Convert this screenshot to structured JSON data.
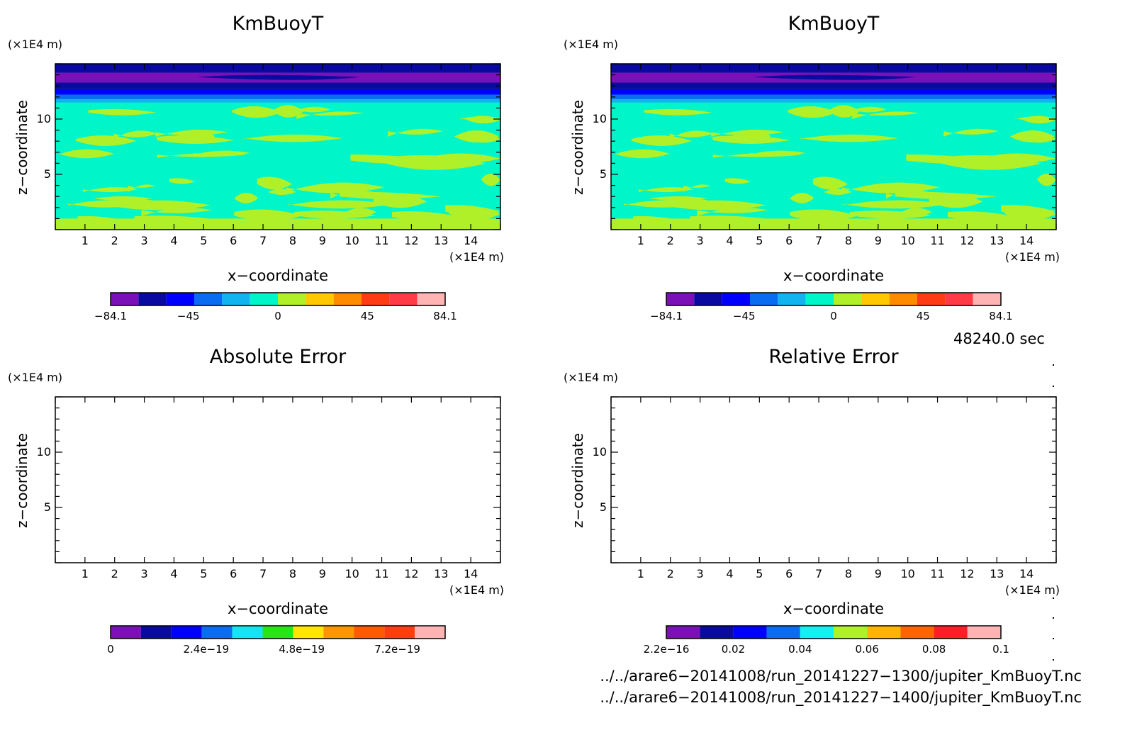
{
  "chart_data": [
    {
      "type": "heatmap",
      "title": "KmBuoyT",
      "xlabel": "x−coordinate",
      "ylabel": "z−coordinate",
      "x_unit": "(×1E4 m)",
      "y_unit": "(×1E4 m)",
      "x_ticks": [
        "1",
        "2",
        "3",
        "4",
        "5",
        "6",
        "7",
        "8",
        "9",
        "10",
        "11",
        "12",
        "13",
        "14"
      ],
      "y_ticks": [
        "5",
        "10"
      ],
      "xlim": [
        0,
        15
      ],
      "ylim": [
        0,
        15
      ],
      "colorbar": {
        "range": [
          -84.1,
          84.1
        ],
        "tick_labels": [
          "−84.1",
          "−45",
          "0",
          "45",
          "84.1"
        ],
        "colors": [
          "#7a10b8",
          "#0a0aa0",
          "#0000ff",
          "#0a6cf0",
          "#12b4f0",
          "#00f5c8",
          "#b0f028",
          "#ffc800",
          "#ff8c00",
          "#ff3c14",
          "#ff3c46",
          "#ffb4b4"
        ]
      },
      "description_levels": {
        "top_band": "purple/blue negative values near z=13-15",
        "interior": "near-zero (cyan) with light-green positive streaks",
        "bottom": "light-green near z=0-3"
      }
    },
    {
      "type": "heatmap",
      "title": "KmBuoyT",
      "xlabel": "x−coordinate",
      "ylabel": "z−coordinate",
      "x_unit": "(×1E4 m)",
      "y_unit": "(×1E4 m)",
      "x_ticks": [
        "1",
        "2",
        "3",
        "4",
        "5",
        "6",
        "7",
        "8",
        "9",
        "10",
        "11",
        "12",
        "13",
        "14"
      ],
      "y_ticks": [
        "5",
        "10"
      ],
      "xlim": [
        0,
        15
      ],
      "ylim": [
        0,
        15
      ],
      "colorbar": {
        "range": [
          -84.1,
          84.1
        ],
        "tick_labels": [
          "−84.1",
          "−45",
          "0",
          "45",
          "84.1"
        ],
        "colors": [
          "#7a10b8",
          "#0a0aa0",
          "#0000ff",
          "#0a6cf0",
          "#12b4f0",
          "#00f5c8",
          "#b0f028",
          "#ffc800",
          "#ff8c00",
          "#ff3c14",
          "#ff3c46",
          "#ffb4b4"
        ]
      }
    },
    {
      "type": "heatmap",
      "title": "Absolute Error",
      "xlabel": "x−coordinate",
      "ylabel": "z−coordinate",
      "x_unit": "(×1E4 m)",
      "y_unit": "(×1E4 m)",
      "x_ticks": [
        "1",
        "2",
        "3",
        "4",
        "5",
        "6",
        "7",
        "8",
        "9",
        "10",
        "11",
        "12",
        "13",
        "14"
      ],
      "y_ticks": [
        "5",
        "10"
      ],
      "xlim": [
        0,
        15
      ],
      "ylim": [
        0,
        15
      ],
      "colorbar": {
        "range": [
          0,
          8.4e-19
        ],
        "tick_labels": [
          "0",
          "2.4e−19",
          "4.8e−19",
          "7.2e−19"
        ],
        "colors": [
          "#7a10b8",
          "#0a0aa0",
          "#0000ff",
          "#0a6cf0",
          "#12e6f0",
          "#28e614",
          "#ffe600",
          "#ff9600",
          "#ff5a00",
          "#ff3c14",
          "#ffb4b4"
        ]
      }
    },
    {
      "type": "heatmap",
      "title": "Relative Error",
      "xlabel": "x−coordinate",
      "ylabel": "z−coordinate",
      "x_unit": "(×1E4 m)",
      "y_unit": "(×1E4 m)",
      "x_ticks": [
        "1",
        "2",
        "3",
        "4",
        "5",
        "6",
        "7",
        "8",
        "9",
        "10",
        "11",
        "12",
        "13",
        "14"
      ],
      "y_ticks": [
        "5",
        "10"
      ],
      "xlim": [
        0,
        15
      ],
      "ylim": [
        0,
        15
      ],
      "colorbar": {
        "range": [
          2.2e-16,
          0.1
        ],
        "tick_labels": [
          "2.2e−16",
          "0.02",
          "0.04",
          "0.06",
          "0.08",
          "0.1"
        ],
        "colors": [
          "#7a10b8",
          "#0a0aa0",
          "#0000ff",
          "#0a6cf0",
          "#12f0f0",
          "#b0f028",
          "#ffb400",
          "#ff6400",
          "#ff1e28",
          "#ffb4b4"
        ]
      }
    }
  ],
  "time_label": "48240.0 sec",
  "files": [
    "../../arare6−20141008/run_20141227−1300/jupiter_KmBuoyT.nc",
    "../../arare6−20141008/run_20141227−1400/jupiter_KmBuoyT.nc"
  ]
}
